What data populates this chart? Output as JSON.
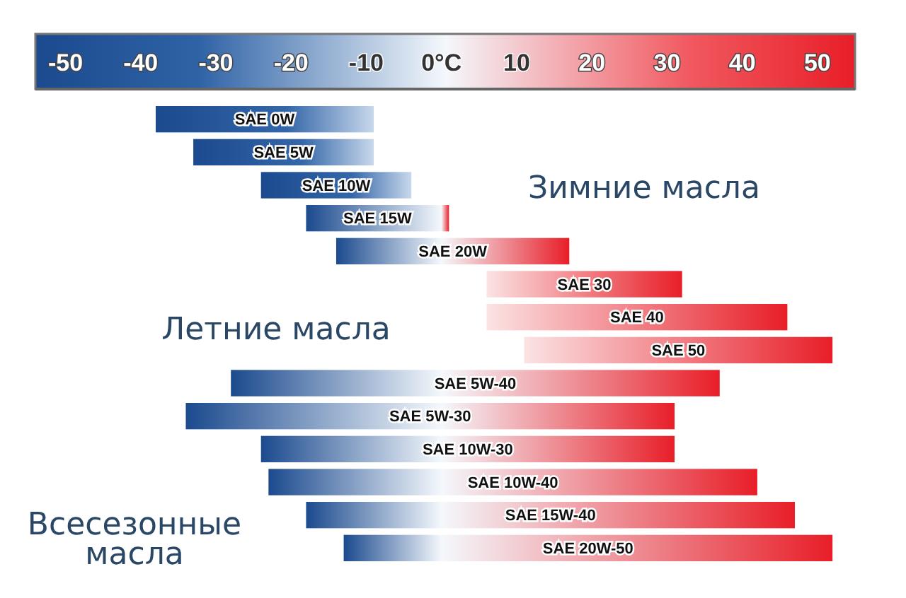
{
  "chart_data": {
    "type": "bar",
    "orientation": "horizontal",
    "categories": [
      "SAE 0W",
      "SAE 5W",
      "SAE 10W",
      "SAE 15W",
      "SAE 20W",
      "SAE 30",
      "SAE 40",
      "SAE 50",
      "SAE 5W-40",
      "SAE 5W-30",
      "SAE 10W-30",
      "SAE 10W-40",
      "SAE 15W-40",
      "SAE 20W-50"
    ],
    "base": [
      -38,
      -33,
      -24,
      -18,
      -14,
      6,
      6,
      11,
      -28,
      -34,
      -24,
      -23,
      -18,
      -13
    ],
    "values": [
      29,
      24,
      20,
      19,
      31,
      26,
      40,
      41,
      65,
      65,
      55,
      65,
      65,
      65
    ],
    "xlim": [
      -54,
      55
    ],
    "xticks": [
      -50,
      -40,
      -30,
      -20,
      -10,
      {
        "value": 0,
        "label": "0°C"
      },
      10,
      20,
      30,
      40,
      50
    ],
    "grid": false,
    "annotations": [
      "Зимние масла",
      "Летние масла",
      "Всесезонные масла"
    ]
  }
}
